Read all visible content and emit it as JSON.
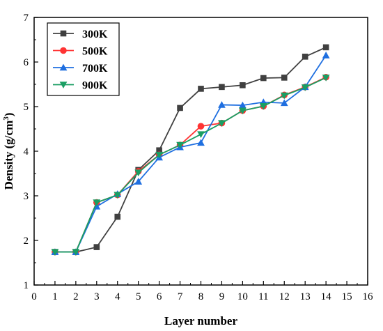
{
  "chart_data": {
    "type": "line",
    "xlabel": "Layer number",
    "ylabel_main": "Density (g/cm",
    "ylabel_sup": "3",
    "ylabel_close": ")",
    "xlim": [
      0,
      16
    ],
    "ylim": [
      1,
      7
    ],
    "xticks": [
      0,
      1,
      2,
      3,
      4,
      5,
      6,
      7,
      8,
      9,
      10,
      11,
      12,
      13,
      14,
      15,
      16
    ],
    "yticks": [
      1,
      2,
      3,
      4,
      5,
      6,
      7
    ],
    "legend_position": "top-left",
    "series": [
      {
        "name": "300K",
        "color": "#404040",
        "marker": "square",
        "x": [
          1,
          2,
          3,
          4,
          5,
          6,
          7,
          8,
          9,
          10,
          11,
          12,
          13,
          14
        ],
        "y": [
          1.74,
          1.74,
          1.85,
          2.53,
          3.58,
          4.02,
          4.97,
          5.4,
          5.44,
          5.48,
          5.64,
          5.65,
          6.12,
          6.33
        ]
      },
      {
        "name": "500K",
        "color": "#ff3333",
        "marker": "circle",
        "x": [
          1,
          2,
          3,
          4,
          5,
          6,
          7,
          8,
          9,
          10,
          11,
          12,
          13,
          14
        ],
        "y": [
          1.74,
          1.74,
          2.85,
          3.02,
          3.55,
          3.92,
          4.14,
          4.56,
          4.63,
          4.91,
          5.01,
          5.26,
          5.44,
          5.66
        ]
      },
      {
        "name": "700K",
        "color": "#1f6fe0",
        "marker": "triangle-up",
        "x": [
          1,
          2,
          3,
          4,
          5,
          6,
          7,
          8,
          9,
          10,
          11,
          12,
          13,
          14
        ],
        "y": [
          1.74,
          1.74,
          2.76,
          3.04,
          3.32,
          3.86,
          4.09,
          4.19,
          5.04,
          5.03,
          5.1,
          5.08,
          5.44,
          6.15
        ]
      },
      {
        "name": "900K",
        "color": "#1a9e63",
        "marker": "triangle-down",
        "x": [
          1,
          2,
          3,
          4,
          5,
          6,
          7,
          8,
          9,
          10,
          11,
          12,
          13,
          14
        ],
        "y": [
          1.74,
          1.74,
          2.85,
          3.02,
          3.52,
          3.92,
          4.14,
          4.38,
          4.63,
          4.91,
          5.01,
          5.25,
          5.43,
          5.65
        ]
      }
    ]
  }
}
